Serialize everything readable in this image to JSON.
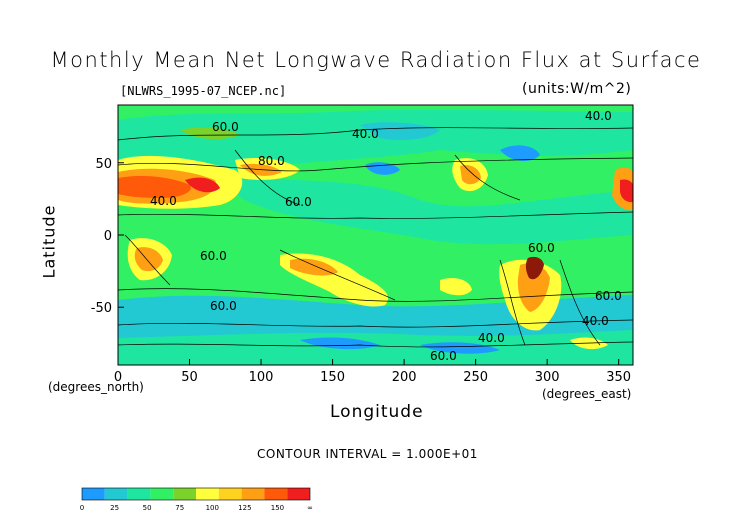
{
  "chart_data": {
    "type": "heatmap",
    "title": "Monthly Mean Net Longwave Radiation Flux at Surface",
    "subtitle_left": "[NLWRS_1995-07_NCEP.nc]",
    "subtitle_right": "(units:W/m^2)",
    "xlabel": "Longitude",
    "ylabel": "Latitude",
    "x_unit": "(degrees_east)",
    "y_unit": "(degrees_north)",
    "xlim": [
      0,
      360
    ],
    "ylim": [
      -90,
      90
    ],
    "x_ticks": [
      0,
      50,
      100,
      150,
      200,
      250,
      300,
      350
    ],
    "y_ticks": [
      50,
      0,
      -50
    ],
    "footer": "CONTOUR INTERVAL = 1.000E+01",
    "contour_labels": [
      "60.0",
      "40.0",
      "80.0",
      "40.0",
      "60.0",
      "60.0",
      "60.0",
      "40.0",
      "60.0",
      "40.0",
      "60.0",
      "60.0",
      "40.0"
    ],
    "colorbar": {
      "ticks": [
        "0",
        "25",
        "50",
        "75",
        "100",
        "125",
        "150",
        "∞"
      ],
      "colors": [
        "#1e9bff",
        "#22c8d2",
        "#1ee6a0",
        "#32f064",
        "#7ad22a",
        "#ffff3c",
        "#ffd21e",
        "#ffa014",
        "#ff5a0a",
        "#f01e1e"
      ]
    },
    "fill_levels": [
      {
        "level": "low",
        "color": "#1e9bff"
      },
      {
        "level": "cyan",
        "color": "#22c8d2"
      },
      {
        "level": "green",
        "color": "#32f064"
      },
      {
        "level": "yellow",
        "color": "#ffff3c"
      },
      {
        "level": "orange",
        "color": "#ffa014"
      },
      {
        "level": "red",
        "color": "#f01e1e"
      },
      {
        "level": "max",
        "color": "#8b1a0a"
      }
    ]
  }
}
